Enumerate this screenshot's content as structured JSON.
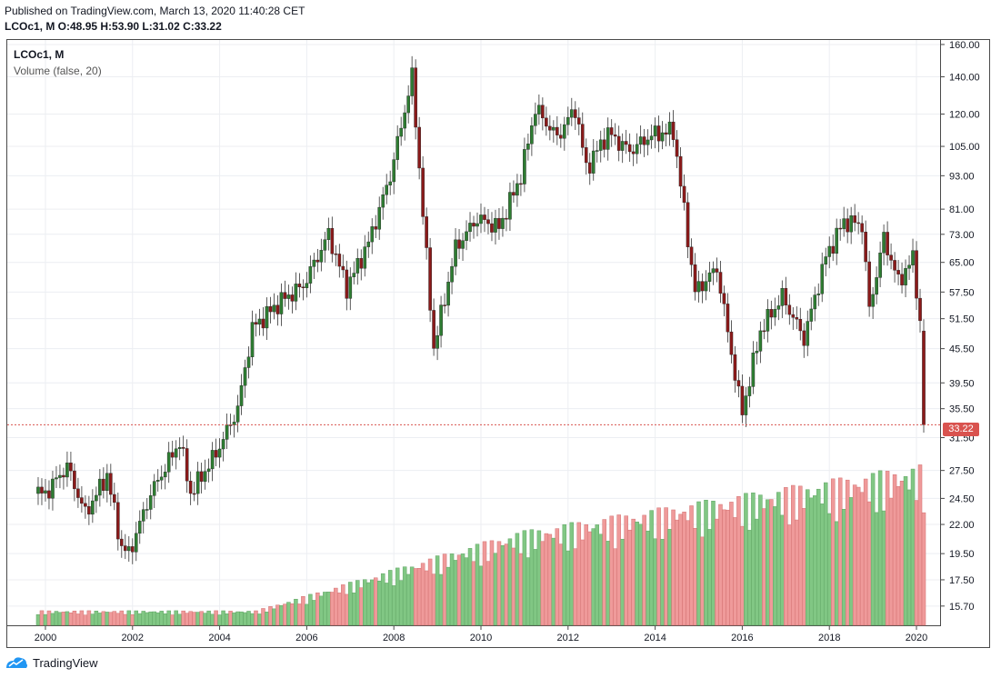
{
  "header": {
    "published": "Published on TradingView.com, March 13, 2020 11:40:28 CET",
    "ohlc": "LCOc1, M  O:48.95 H:53.90 L:31.02 C:33.22"
  },
  "legend": {
    "symbol": "LCOc1, M",
    "volume": "Volume (false, 20)"
  },
  "brand": {
    "name": "TradingView"
  },
  "colors": {
    "up": "#2e7d32",
    "down": "#8b1a1a",
    "up_vol": "#81c784",
    "down_vol": "#ef9a9a",
    "last_price": "#d9534f"
  },
  "chart_data": {
    "type": "candlestick",
    "symbol": "LCOc1",
    "interval": "M",
    "y_scale": "log",
    "ylim": [
      14.5,
      163
    ],
    "y_ticks": [
      "160.00",
      "140.00",
      "120.00",
      "105.00",
      "93.00",
      "81.00",
      "73.00",
      "65.00",
      "57.50",
      "51.50",
      "45.50",
      "39.50",
      "35.50",
      "31.50",
      "27.50",
      "24.50",
      "22.00",
      "19.50",
      "17.50",
      "15.70"
    ],
    "x_ticks": [
      "2000",
      "2002",
      "2004",
      "2006",
      "2008",
      "2010",
      "2012",
      "2014",
      "2016",
      "2018",
      "2020"
    ],
    "xlim": [
      "1999-09",
      "2020-04"
    ],
    "last_price": "33.22",
    "series": [
      {
        "date": "2000-01",
        "close": 25.0
      },
      {
        "date": "2000-07",
        "close": 28.0
      },
      {
        "date": "2000-12",
        "close": 23.0
      },
      {
        "date": "2001-06",
        "close": 27.0
      },
      {
        "date": "2001-10",
        "close": 20.0
      },
      {
        "date": "2001-12",
        "close": 19.5
      },
      {
        "date": "2002-06",
        "close": 25.0
      },
      {
        "date": "2003-02",
        "close": 31.0
      },
      {
        "date": "2003-05",
        "close": 25.0
      },
      {
        "date": "2003-12",
        "close": 29.5
      },
      {
        "date": "2004-06",
        "close": 35.5
      },
      {
        "date": "2004-10",
        "close": 49.5
      },
      {
        "date": "2005-06",
        "close": 55.5
      },
      {
        "date": "2005-12",
        "close": 59.0
      },
      {
        "date": "2006-07",
        "close": 73.0
      },
      {
        "date": "2006-12",
        "close": 58.5
      },
      {
        "date": "2007-06",
        "close": 70.5
      },
      {
        "date": "2007-12",
        "close": 93.0
      },
      {
        "date": "2008-06",
        "close": 140.0
      },
      {
        "date": "2008-12",
        "close": 45.5
      },
      {
        "date": "2009-06",
        "close": 69.0
      },
      {
        "date": "2009-12",
        "close": 78.0
      },
      {
        "date": "2010-06",
        "close": 75.0
      },
      {
        "date": "2010-12",
        "close": 93.0
      },
      {
        "date": "2011-04",
        "close": 123.0
      },
      {
        "date": "2011-10",
        "close": 109.0
      },
      {
        "date": "2012-03",
        "close": 123.0
      },
      {
        "date": "2012-06",
        "close": 96.0
      },
      {
        "date": "2012-12",
        "close": 111.0
      },
      {
        "date": "2013-06",
        "close": 103.0
      },
      {
        "date": "2013-12",
        "close": 110.0
      },
      {
        "date": "2014-06",
        "close": 112.0
      },
      {
        "date": "2014-12",
        "close": 57.5
      },
      {
        "date": "2015-06",
        "close": 63.5
      },
      {
        "date": "2015-12",
        "close": 37.5
      },
      {
        "date": "2016-01",
        "close": 35.0
      },
      {
        "date": "2016-06",
        "close": 49.0
      },
      {
        "date": "2016-12",
        "close": 56.5
      },
      {
        "date": "2017-06",
        "close": 47.5
      },
      {
        "date": "2017-12",
        "close": 66.5
      },
      {
        "date": "2018-05",
        "close": 77.0
      },
      {
        "date": "2018-10",
        "close": 76.0
      },
      {
        "date": "2018-12",
        "close": 53.5
      },
      {
        "date": "2019-04",
        "close": 72.0
      },
      {
        "date": "2019-08",
        "close": 60.0
      },
      {
        "date": "2019-12",
        "close": 66.0
      },
      {
        "date": "2020-01",
        "close": 58.5
      },
      {
        "date": "2020-02",
        "close": 50.5
      },
      {
        "date": "2020-03",
        "close": 33.22
      }
    ]
  }
}
